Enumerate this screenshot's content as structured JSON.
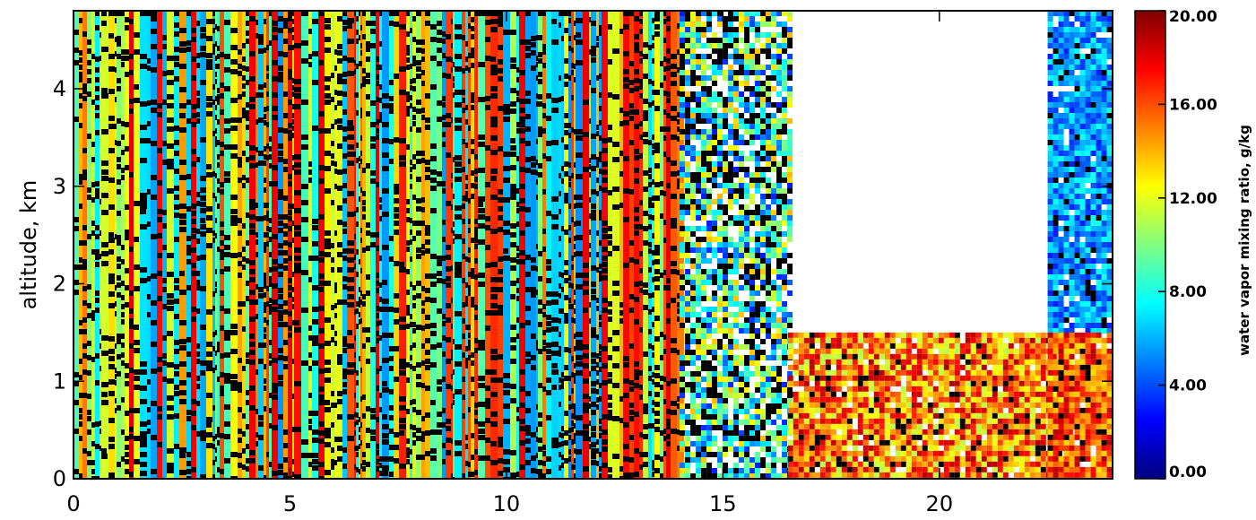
{
  "chart_data": {
    "type": "heatmap",
    "title": "",
    "xlabel": "",
    "ylabel": "altitude, km",
    "xlim": [
      0,
      24
    ],
    "ylim": [
      0,
      4.8
    ],
    "x_ticks": [
      "0",
      "5",
      "10",
      "15",
      "20"
    ],
    "y_ticks": [
      "0",
      "1",
      "2",
      "3",
      "4"
    ],
    "colorbar": {
      "label": "water vapor mixing ratio, g/kg",
      "range": [
        0,
        20
      ],
      "ticks": [
        "0.00",
        "4.00",
        "8.00",
        "12.00",
        "16.00",
        "20.00"
      ],
      "colormap": [
        "#00007f",
        "#0000ff",
        "#0080ff",
        "#00ffff",
        "#80ff80",
        "#ffff00",
        "#ff8000",
        "#ff0000",
        "#7f0000"
      ]
    },
    "missing_color": "#000000",
    "grid": false,
    "regions": [
      {
        "x": [
          0,
          14
        ],
        "y": [
          0,
          4.8
        ],
        "pattern": "vertical-stripes",
        "mixing_ratio": [
          5,
          18
        ]
      },
      {
        "x": [
          14,
          16.5
        ],
        "y": [
          0,
          4.8
        ],
        "pattern": "sparse",
        "mixing_ratio": [
          3,
          14
        ]
      },
      {
        "x": [
          16.5,
          23
        ],
        "y": [
          0,
          1.5
        ],
        "pattern": "dense",
        "mixing_ratio": [
          11,
          19
        ]
      },
      {
        "x": [
          22.5,
          24
        ],
        "y": [
          1.5,
          4.8
        ],
        "pattern": "dense",
        "mixing_ratio": [
          3,
          8
        ]
      },
      {
        "x": [
          22.5,
          24
        ],
        "y": [
          0,
          1.5
        ],
        "pattern": "dense",
        "mixing_ratio": [
          13,
          19
        ]
      }
    ]
  }
}
